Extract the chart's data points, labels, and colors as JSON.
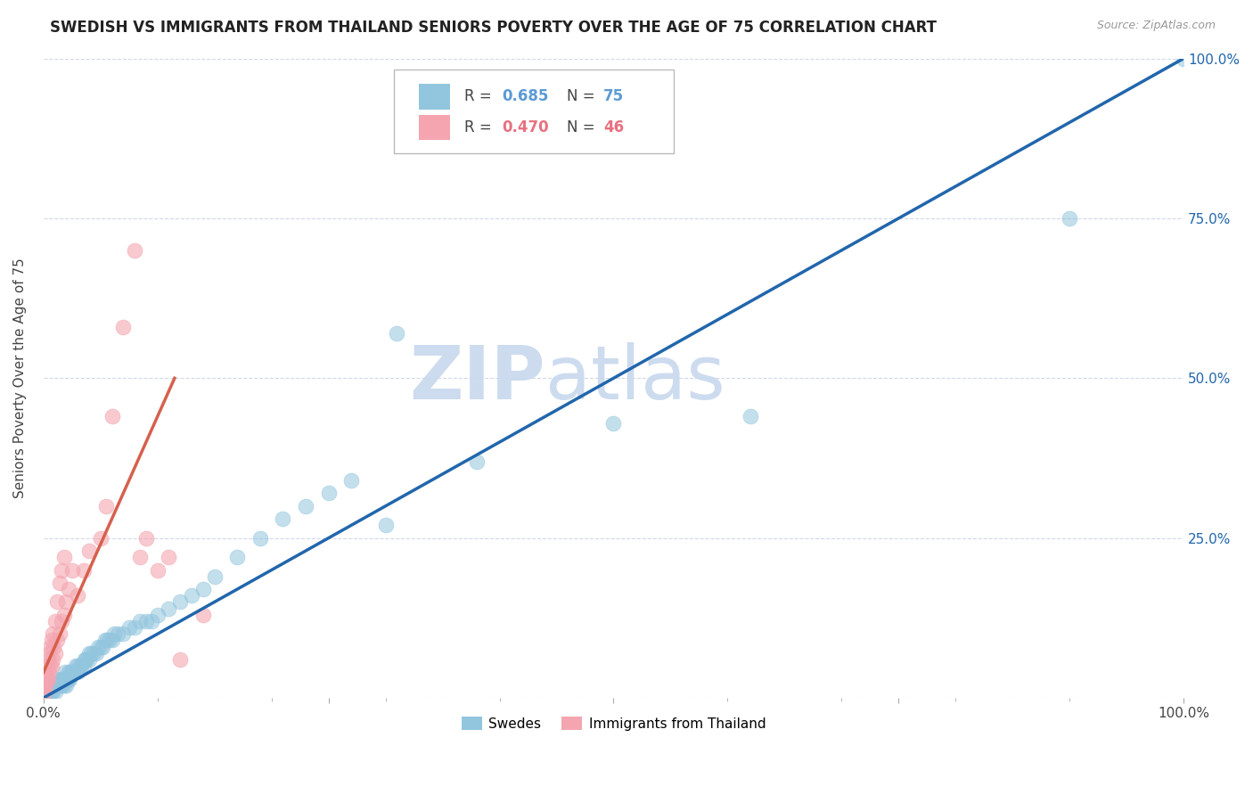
{
  "title": "SWEDISH VS IMMIGRANTS FROM THAILAND SENIORS POVERTY OVER THE AGE OF 75 CORRELATION CHART",
  "source": "Source: ZipAtlas.com",
  "ylabel": "Seniors Poverty Over the Age of 75",
  "watermark_line1": "ZIP",
  "watermark_line2": "atlas",
  "xlim": [
    0,
    1
  ],
  "ylim": [
    0,
    1
  ],
  "xticks": [
    0,
    0.25,
    0.5,
    0.75,
    1.0
  ],
  "yticks": [
    0,
    0.25,
    0.5,
    0.75,
    1.0
  ],
  "xticklabels": [
    "0.0%",
    "",
    "",
    "",
    "100.0%"
  ],
  "yticklabels_left": [
    "",
    "",
    "",
    "",
    ""
  ],
  "yticklabels_right": [
    "",
    "25.0%",
    "50.0%",
    "75.0%",
    "100.0%"
  ],
  "legend_blue_r": "0.685",
  "legend_blue_n": "75",
  "legend_pink_r": "0.470",
  "legend_pink_n": "46",
  "blue_color": "#92c5de",
  "pink_color": "#f4a5b0",
  "blue_line_color": "#2166ac",
  "pink_line_color": "#d6604d",
  "legend_blue_label": "Swedes",
  "legend_pink_label": "Immigrants from Thailand",
  "background_color": "#ffffff",
  "grid_color": "#d0d8e8",
  "title_fontsize": 12,
  "axis_fontsize": 11,
  "tick_fontsize": 11,
  "watermark_fontsize": 60,
  "watermark_color": "#c8d8ee",
  "blue_trend_x": [
    0.0,
    1.0
  ],
  "blue_trend_y": [
    0.0,
    1.0
  ],
  "pink_trend_x": [
    0.0,
    0.115
  ],
  "pink_trend_y": [
    0.04,
    0.5
  ],
  "blue_scatter_x": [
    0.005,
    0.006,
    0.007,
    0.008,
    0.008,
    0.01,
    0.01,
    0.01,
    0.012,
    0.013,
    0.015,
    0.015,
    0.016,
    0.017,
    0.018,
    0.018,
    0.019,
    0.02,
    0.02,
    0.021,
    0.022,
    0.022,
    0.023,
    0.024,
    0.025,
    0.026,
    0.027,
    0.028,
    0.03,
    0.03,
    0.032,
    0.033,
    0.035,
    0.036,
    0.037,
    0.038,
    0.04,
    0.04,
    0.042,
    0.044,
    0.046,
    0.048,
    0.05,
    0.052,
    0.054,
    0.056,
    0.058,
    0.06,
    0.062,
    0.065,
    0.07,
    0.075,
    0.08,
    0.085,
    0.09,
    0.095,
    0.1,
    0.11,
    0.12,
    0.13,
    0.14,
    0.15,
    0.17,
    0.19,
    0.21,
    0.23,
    0.25,
    0.27,
    0.3,
    0.31,
    0.38,
    0.5,
    0.62,
    0.9,
    1.0
  ],
  "blue_scatter_y": [
    0.01,
    0.01,
    0.01,
    0.01,
    0.02,
    0.01,
    0.02,
    0.03,
    0.02,
    0.02,
    0.02,
    0.03,
    0.02,
    0.03,
    0.02,
    0.03,
    0.04,
    0.02,
    0.03,
    0.03,
    0.03,
    0.04,
    0.03,
    0.04,
    0.04,
    0.04,
    0.04,
    0.05,
    0.04,
    0.05,
    0.05,
    0.05,
    0.05,
    0.06,
    0.06,
    0.06,
    0.06,
    0.07,
    0.07,
    0.07,
    0.07,
    0.08,
    0.08,
    0.08,
    0.09,
    0.09,
    0.09,
    0.09,
    0.1,
    0.1,
    0.1,
    0.11,
    0.11,
    0.12,
    0.12,
    0.12,
    0.13,
    0.14,
    0.15,
    0.16,
    0.17,
    0.19,
    0.22,
    0.25,
    0.28,
    0.3,
    0.32,
    0.34,
    0.27,
    0.57,
    0.37,
    0.43,
    0.44,
    0.75,
    1.0
  ],
  "pink_scatter_x": [
    0.0,
    0.0,
    0.001,
    0.001,
    0.002,
    0.002,
    0.003,
    0.003,
    0.004,
    0.004,
    0.005,
    0.005,
    0.006,
    0.006,
    0.007,
    0.007,
    0.008,
    0.008,
    0.009,
    0.01,
    0.01,
    0.012,
    0.012,
    0.014,
    0.014,
    0.016,
    0.016,
    0.018,
    0.018,
    0.02,
    0.022,
    0.025,
    0.03,
    0.035,
    0.04,
    0.05,
    0.055,
    0.06,
    0.07,
    0.08,
    0.085,
    0.09,
    0.1,
    0.11,
    0.12,
    0.14
  ],
  "pink_scatter_y": [
    0.01,
    0.02,
    0.01,
    0.03,
    0.02,
    0.04,
    0.03,
    0.05,
    0.03,
    0.06,
    0.04,
    0.07,
    0.05,
    0.08,
    0.05,
    0.09,
    0.06,
    0.1,
    0.08,
    0.07,
    0.12,
    0.09,
    0.15,
    0.1,
    0.18,
    0.12,
    0.2,
    0.13,
    0.22,
    0.15,
    0.17,
    0.2,
    0.16,
    0.2,
    0.23,
    0.25,
    0.3,
    0.44,
    0.58,
    0.7,
    0.22,
    0.25,
    0.2,
    0.22,
    0.06,
    0.13
  ]
}
